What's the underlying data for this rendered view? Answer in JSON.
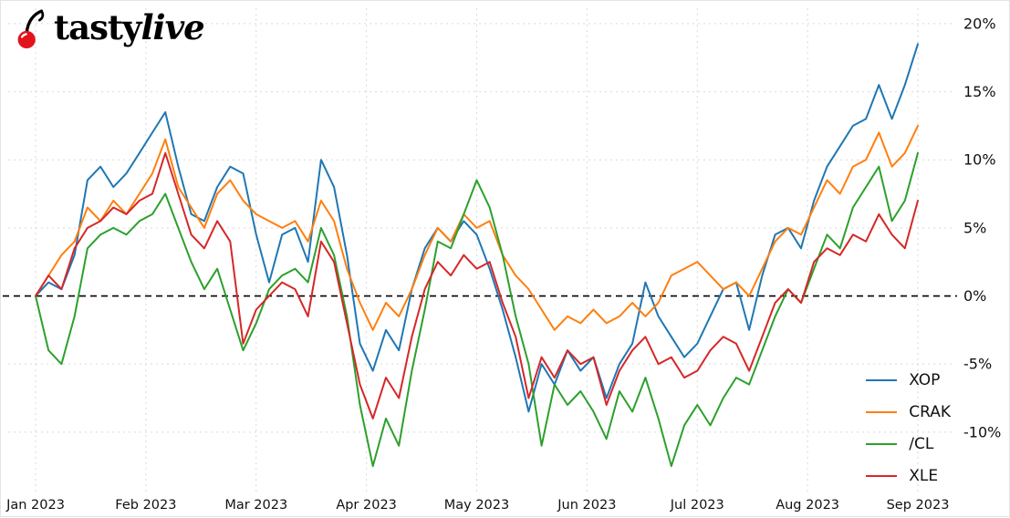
{
  "logo": {
    "tasty": "tasty",
    "live": "live"
  },
  "chart_data": {
    "type": "line",
    "title": "",
    "xlabel": "",
    "ylabel": "",
    "x_tick_labels": [
      "Jan 2023",
      "Feb 2023",
      "Mar 2023",
      "Apr 2023",
      "May 2023",
      "Jun 2023",
      "Jul 2023",
      "Aug 2023",
      "Sep 2023"
    ],
    "x_tick_indices": [
      0,
      8.5,
      17,
      25.5,
      34,
      42.5,
      51,
      59.5,
      68
    ],
    "y_ticks": [
      20,
      15,
      10,
      5,
      0,
      -5,
      -10
    ],
    "y_tick_labels": [
      "20%",
      "15%",
      "10%",
      "5%",
      "0%",
      "-5%",
      "-10%"
    ],
    "ylim": [
      -14.5,
      21
    ],
    "grid": true,
    "zero_line_dashed": true,
    "legend_position": "bottom-right",
    "colors": {
      "grid": "#d9d9d9",
      "zero_line": "#000000"
    },
    "series": [
      {
        "name": "XOP",
        "color": "#1f77b4",
        "values": [
          0.0,
          1.0,
          0.5,
          3.0,
          8.5,
          9.5,
          8.0,
          9.0,
          10.5,
          12.0,
          13.5,
          9.5,
          6.0,
          5.5,
          8.0,
          9.5,
          9.0,
          4.5,
          1.0,
          4.5,
          5.0,
          2.5,
          10.0,
          8.0,
          3.0,
          -3.5,
          -5.5,
          -2.5,
          -4.0,
          0.5,
          3.5,
          5.0,
          4.0,
          5.5,
          4.5,
          2.0,
          -1.0,
          -4.5,
          -8.5,
          -5.0,
          -6.5,
          -4.0,
          -5.5,
          -4.5,
          -7.5,
          -5.0,
          -3.5,
          1.0,
          -1.5,
          -3.0,
          -4.5,
          -3.5,
          -1.5,
          0.5,
          1.0,
          -2.5,
          1.5,
          4.5,
          5.0,
          3.5,
          7.0,
          9.5,
          11.0,
          12.5,
          13.0,
          15.5,
          13.0,
          15.5,
          18.5
        ]
      },
      {
        "name": "CRAK",
        "color": "#ff7f0e",
        "values": [
          0.0,
          1.5,
          3.0,
          4.0,
          6.5,
          5.5,
          7.0,
          6.0,
          7.5,
          9.0,
          11.5,
          8.0,
          6.5,
          5.0,
          7.5,
          8.5,
          7.0,
          6.0,
          5.5,
          5.0,
          5.5,
          4.0,
          7.0,
          5.5,
          2.0,
          -0.5,
          -2.5,
          -0.5,
          -1.5,
          0.5,
          3.0,
          5.0,
          4.0,
          6.0,
          5.0,
          5.5,
          3.0,
          1.5,
          0.5,
          -1.0,
          -2.5,
          -1.5,
          -2.0,
          -1.0,
          -2.0,
          -1.5,
          -0.5,
          -1.5,
          -0.5,
          1.5,
          2.0,
          2.5,
          1.5,
          0.5,
          1.0,
          0.0,
          2.0,
          4.0,
          5.0,
          4.5,
          6.5,
          8.5,
          7.5,
          9.5,
          10.0,
          12.0,
          9.5,
          10.5,
          12.5
        ]
      },
      {
        "name": "/CL",
        "color": "#2ca02c",
        "values": [
          0.0,
          -4.0,
          -5.0,
          -1.5,
          3.5,
          4.5,
          5.0,
          4.5,
          5.5,
          6.0,
          7.5,
          5.0,
          2.5,
          0.5,
          2.0,
          -1.0,
          -4.0,
          -2.0,
          0.5,
          1.5,
          2.0,
          1.0,
          5.0,
          3.0,
          -1.5,
          -8.0,
          -12.5,
          -9.0,
          -11.0,
          -5.5,
          -1.0,
          4.0,
          3.5,
          6.0,
          8.5,
          6.5,
          3.0,
          -1.5,
          -5.0,
          -11.0,
          -6.5,
          -8.0,
          -7.0,
          -8.5,
          -10.5,
          -7.0,
          -8.5,
          -6.0,
          -9.0,
          -12.5,
          -9.5,
          -8.0,
          -9.5,
          -7.5,
          -6.0,
          -6.5,
          -4.0,
          -1.5,
          0.5,
          -0.5,
          2.0,
          4.5,
          3.5,
          6.5,
          8.0,
          9.5,
          5.5,
          7.0,
          10.5
        ]
      },
      {
        "name": "XLE",
        "color": "#d62728",
        "values": [
          0.0,
          1.5,
          0.5,
          3.5,
          5.0,
          5.5,
          6.5,
          6.0,
          7.0,
          7.5,
          10.5,
          7.5,
          4.5,
          3.5,
          5.5,
          4.0,
          -3.5,
          -1.0,
          0.0,
          1.0,
          0.5,
          -1.5,
          4.0,
          2.5,
          -2.0,
          -6.5,
          -9.0,
          -6.0,
          -7.5,
          -3.0,
          0.5,
          2.5,
          1.5,
          3.0,
          2.0,
          2.5,
          -0.5,
          -3.0,
          -7.5,
          -4.5,
          -6.0,
          -4.0,
          -5.0,
          -4.5,
          -8.0,
          -5.5,
          -4.0,
          -3.0,
          -5.0,
          -4.5,
          -6.0,
          -5.5,
          -4.0,
          -3.0,
          -3.5,
          -5.5,
          -3.0,
          -0.5,
          0.5,
          -0.5,
          2.5,
          3.5,
          3.0,
          4.5,
          4.0,
          6.0,
          4.5,
          3.5,
          7.0
        ]
      }
    ]
  }
}
